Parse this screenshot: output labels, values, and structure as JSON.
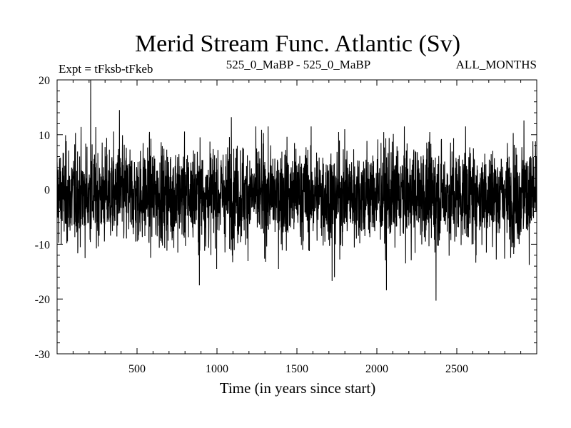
{
  "chart_data": {
    "type": "line",
    "title": "Merid Stream Func. Atlantic (Sv)",
    "subtitle_left": "Expt = tFksb-tFkeb",
    "subtitle_center": "525_0_MaBP - 525_0_MaBP",
    "subtitle_right": "ALL_MONTHS",
    "xlabel": "Time (in years since start)",
    "ylabel": "",
    "xlim": [
      0,
      3000
    ],
    "ylim": [
      -30,
      20
    ],
    "xticks": [
      500,
      1000,
      1500,
      2000,
      2500
    ],
    "yticks": [
      20,
      10,
      0,
      -10,
      -20,
      -30
    ],
    "grid": false,
    "line_color": "#000000",
    "series": [
      {
        "name": "Merid Stream Func. Atlantic",
        "x_start": 0,
        "x_step": 1,
        "n_points": 3000,
        "baseline": -1,
        "noise_amplitude": 4.5,
        "extremes": [
          {
            "x": 210,
            "value": 20
          },
          {
            "x": 890,
            "value": -17.5
          },
          {
            "x": 1720,
            "value": -16.7
          },
          {
            "x": 1735,
            "value": -16.0
          },
          {
            "x": 2060,
            "value": -18.4
          },
          {
            "x": 2370,
            "value": -20.3
          },
          {
            "x": 2920,
            "value": 12.6
          },
          {
            "x": 390,
            "value": 14.5
          },
          {
            "x": 1090,
            "value": 13.2
          }
        ]
      }
    ]
  }
}
